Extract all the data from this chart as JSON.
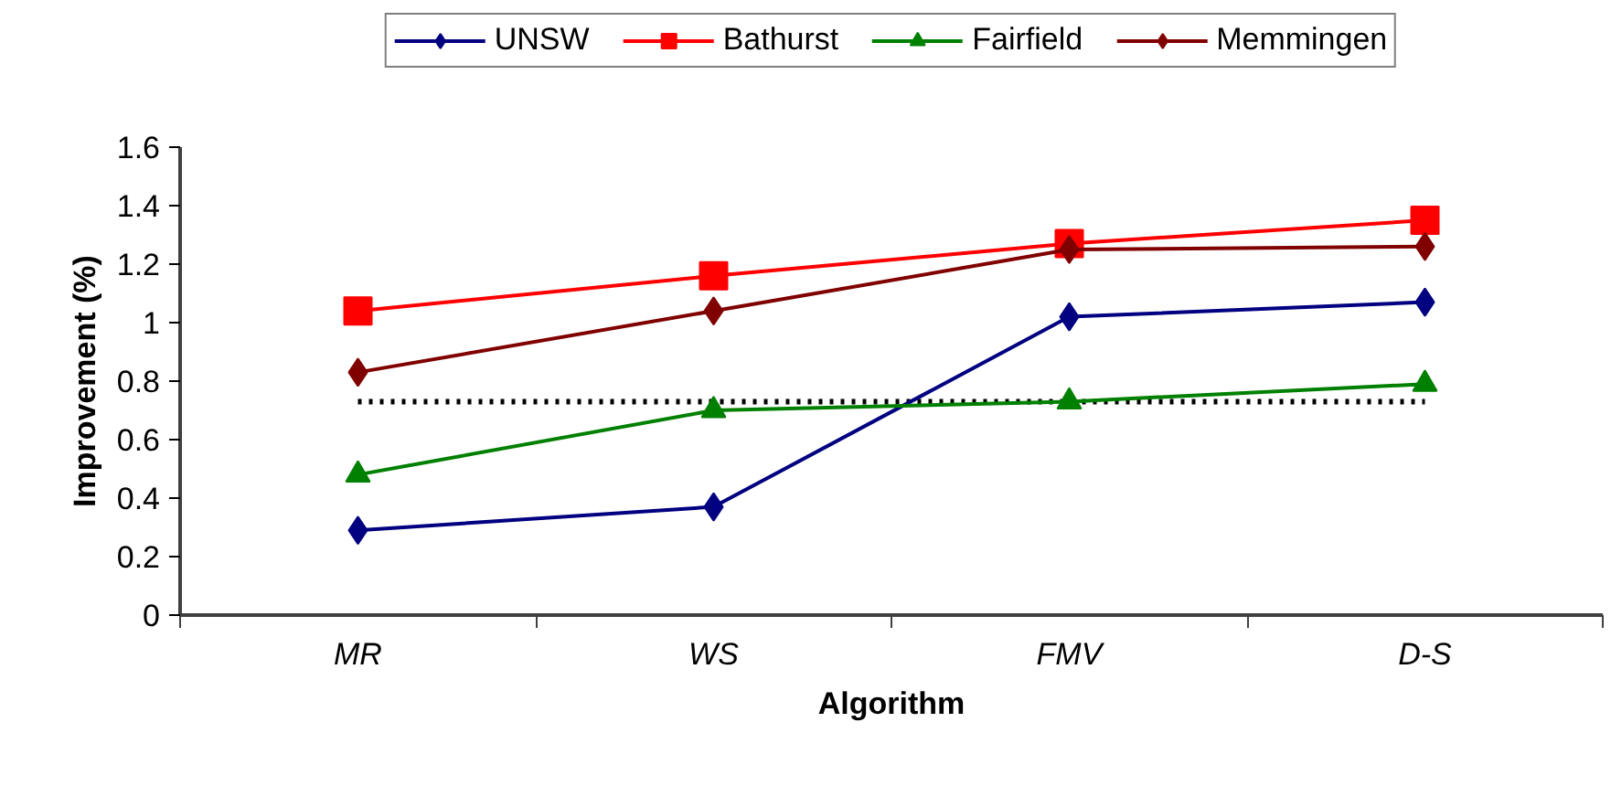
{
  "chart_data": {
    "type": "line",
    "xlabel": "Algorithm",
    "ylabel": "Improvement (%)",
    "categories": [
      "MR",
      "WS",
      "FMV",
      "D-S"
    ],
    "series": [
      {
        "name": "UNSW",
        "color": "#000080",
        "marker": "diamond",
        "values": [
          0.29,
          0.37,
          1.02,
          1.07
        ]
      },
      {
        "name": "Bathurst",
        "color": "#ff0000",
        "marker": "square",
        "values": [
          1.04,
          1.16,
          1.27,
          1.35
        ]
      },
      {
        "name": "Fairfield",
        "color": "#008000",
        "marker": "triangle",
        "values": [
          0.48,
          0.7,
          0.73,
          0.79
        ]
      },
      {
        "name": "Memmingen",
        "color": "#800000",
        "marker": "diamond",
        "values": [
          0.83,
          1.04,
          1.25,
          1.26
        ]
      }
    ],
    "ylim": [
      0,
      1.6
    ],
    "yticks": [
      0,
      0.2,
      0.4,
      0.6,
      0.8,
      1,
      1.2,
      1.4,
      1.6
    ],
    "ref_lines": [
      {
        "axis": "y",
        "value": 0.73,
        "label": null,
        "color": "#000000",
        "line_style": "dotted"
      }
    ],
    "grid": false,
    "legend": "top",
    "line_style": "solid"
  }
}
